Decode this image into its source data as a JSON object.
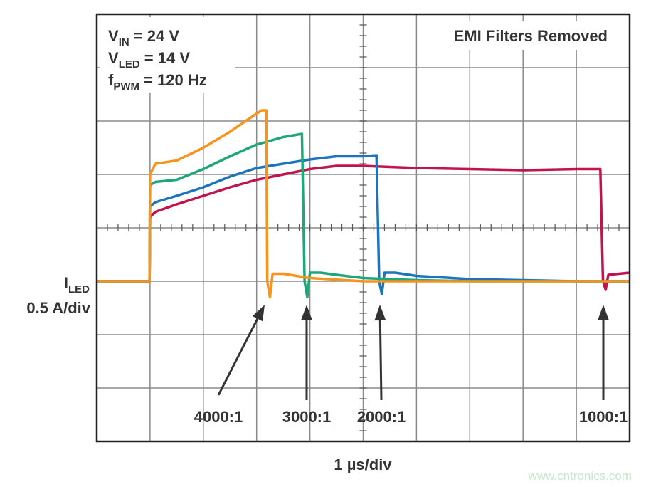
{
  "chart_data": {
    "type": "line",
    "annotations": [
      {
        "main": "V",
        "sub": "IN",
        "rest": " = 24 V"
      },
      {
        "main": "V",
        "sub": "LED",
        "rest": " = 14 V"
      },
      {
        "main": "f",
        "sub": "PWM",
        "rest": " = 120 Hz"
      }
    ],
    "note": "EMI Filters Removed",
    "y_label": {
      "main": "I",
      "sub": "LED",
      "scale": "0.5 A/div"
    },
    "x_label": "1 µs/div",
    "source": "www.cntronics.com",
    "xlim": [
      0,
      10
    ],
    "xticks": [
      0,
      1,
      2,
      3,
      4,
      5,
      6,
      7,
      8,
      9,
      10
    ],
    "ylim": [
      -1.5,
      2.5
    ],
    "yticks": [
      -1.5,
      -1,
      -0.5,
      0,
      0.5,
      1,
      1.5,
      2,
      2.5
    ],
    "grid": true,
    "series": [
      {
        "name": "4000:1",
        "color": "#f7941d",
        "x": [
          0,
          0.99,
          1.0,
          1.1,
          1.5,
          2,
          2.5,
          3,
          3.1,
          3.18,
          3.2,
          3.25,
          3.3,
          3.5,
          4,
          5,
          6,
          7,
          8,
          9,
          10
        ],
        "values": [
          0,
          0,
          1.0,
          1.1,
          1.13,
          1.25,
          1.4,
          1.57,
          1.6,
          1.6,
          0,
          -0.15,
          0.07,
          0.07,
          0.03,
          0,
          0,
          0,
          0,
          0,
          0
        ]
      },
      {
        "name": "3000:1",
        "color": "#1fa67a",
        "x": [
          0,
          0.99,
          1.0,
          1.1,
          1.5,
          2,
          2.5,
          3,
          3.5,
          3.85,
          3.9,
          3.95,
          4.0,
          4.2,
          4.5,
          5,
          6,
          7,
          8,
          9,
          10
        ],
        "values": [
          0,
          0,
          0.9,
          0.93,
          0.95,
          1.05,
          1.17,
          1.28,
          1.35,
          1.38,
          0,
          -0.15,
          0.08,
          0.08,
          0.06,
          0.03,
          0.01,
          0,
          0,
          0,
          0
        ]
      },
      {
        "name": "2000:1",
        "color": "#1c75bc",
        "x": [
          0,
          0.99,
          1.0,
          1.1,
          1.5,
          2,
          2.5,
          3,
          3.5,
          4,
          4.5,
          5,
          5.25,
          5.3,
          5.35,
          5.4,
          5.6,
          6,
          7,
          8,
          9,
          10
        ],
        "values": [
          0,
          0,
          0.7,
          0.74,
          0.8,
          0.88,
          0.98,
          1.06,
          1.1,
          1.14,
          1.17,
          1.17,
          1.18,
          0,
          -0.12,
          0.08,
          0.08,
          0.05,
          0.02,
          0.01,
          0,
          0
        ]
      },
      {
        "name": "1000:1",
        "color": "#c0144c",
        "x": [
          0,
          0.99,
          1.0,
          1.1,
          1.5,
          2,
          2.5,
          3,
          3.5,
          4,
          4.5,
          5,
          6,
          7,
          8,
          9,
          9.45,
          9.5,
          9.55,
          9.6,
          10
        ],
        "values": [
          0,
          0,
          0.6,
          0.65,
          0.72,
          0.8,
          0.88,
          0.95,
          1.0,
          1.05,
          1.08,
          1.08,
          1.06,
          1.05,
          1.04,
          1.05,
          1.05,
          0,
          -0.08,
          0.06,
          0.08
        ]
      }
    ]
  }
}
